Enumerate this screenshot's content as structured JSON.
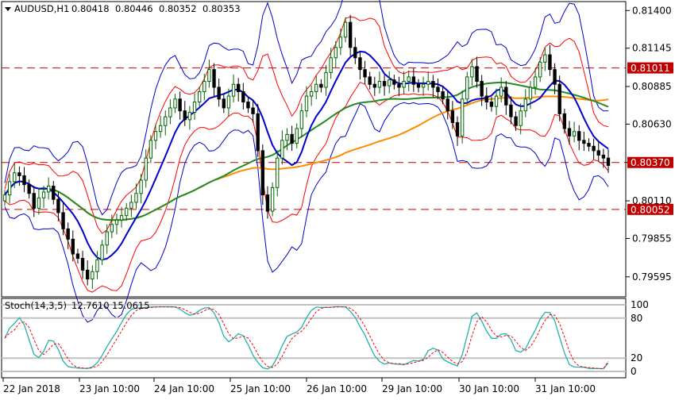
{
  "header": {
    "symbol": "AUDUSD,H1",
    "open": "0.80418",
    "high": "0.80446",
    "low": "0.80352",
    "close": "0.80353"
  },
  "stoch_header": {
    "name": "Stoch(14,3,5)",
    "main": "12.7610",
    "signal": "15.0615"
  },
  "colors": {
    "background": "#ffffff",
    "bull_candle": "#006400",
    "bear_candle": "#000000",
    "bb_outer": "#0000cd",
    "bb_inner": "#ff0000",
    "ma_fast": "#0000cd",
    "ma_mid": "#228b22",
    "ma_slow": "#ff8c00",
    "hline": "#cc0000",
    "price_tag_bg": "#c00000",
    "stoch_main": "#20b2aa",
    "stoch_signal": "#ff0000",
    "stoch_level": "#c0c0c0"
  },
  "chart_data": [
    {
      "type": "candlestick",
      "symbol": "AUDUSD",
      "timeframe": "H1",
      "ylim": [
        0.7947,
        0.8145
      ],
      "y_ticks": [
        "0.81400",
        "0.81145",
        "0.80885",
        "0.80630",
        "0.80370",
        "0.80110",
        "0.79855",
        "0.79595"
      ],
      "x_ticks": [
        "22 Jan 2018",
        "23 Jan 10:00",
        "24 Jan 10:00",
        "25 Jan 10:00",
        "26 Jan 10:00",
        "29 Jan 10:00",
        "30 Jan 10:00",
        "31 Jan 10:00"
      ],
      "horizontal_levels": [
        {
          "label": "0.81011",
          "value": 0.81011
        },
        {
          "label": "0.80370",
          "value": 0.8037
        },
        {
          "label": "0.80052",
          "value": 0.80052
        }
      ],
      "indicators": [
        "Bollinger Bands (outer, blue)",
        "Bollinger Bands (inner, red)",
        "Moving Average (blue)",
        "Moving Average (green)",
        "Moving Average (orange)"
      ],
      "closes": [
        0.8015,
        0.8024,
        0.803,
        0.8028,
        0.8022,
        0.8016,
        0.8006,
        0.8013,
        0.8017,
        0.8021,
        0.8012,
        0.8003,
        0.7992,
        0.7985,
        0.7975,
        0.7972,
        0.7964,
        0.7958,
        0.7963,
        0.7971,
        0.7981,
        0.799,
        0.7995,
        0.7998,
        0.8001,
        0.8006,
        0.801,
        0.8016,
        0.8025,
        0.804,
        0.8052,
        0.8058,
        0.8062,
        0.8068,
        0.8074,
        0.808,
        0.8072,
        0.8066,
        0.8071,
        0.8078,
        0.8085,
        0.8092,
        0.81,
        0.8088,
        0.808,
        0.8074,
        0.8082,
        0.809,
        0.8085,
        0.8078,
        0.8074,
        0.807,
        0.8045,
        0.8015,
        0.8004,
        0.802,
        0.804,
        0.8052,
        0.8056,
        0.805,
        0.806,
        0.8072,
        0.8082,
        0.8085,
        0.809,
        0.8088,
        0.8098,
        0.8108,
        0.8115,
        0.8122,
        0.8132,
        0.8115,
        0.8108,
        0.81,
        0.8095,
        0.809,
        0.8088,
        0.8092,
        0.8089,
        0.8093,
        0.809,
        0.8088,
        0.8092,
        0.8095,
        0.809,
        0.8088,
        0.809,
        0.8092,
        0.8088,
        0.8085,
        0.808,
        0.8072,
        0.8064,
        0.8055,
        0.808,
        0.8095,
        0.8102,
        0.8092,
        0.8082,
        0.8078,
        0.8075,
        0.8082,
        0.8088,
        0.8076,
        0.8068,
        0.8062,
        0.8072,
        0.808,
        0.8088,
        0.8095,
        0.8105,
        0.811,
        0.81,
        0.809,
        0.807,
        0.806,
        0.8055,
        0.8058,
        0.8052,
        0.805,
        0.8048,
        0.8045,
        0.8042,
        0.804,
        0.8035
      ],
      "stochastic": {
        "params": "14,3,5",
        "levels": [
          100,
          80,
          20,
          0
        ],
        "main_last": 12.761,
        "signal_last": 15.0615
      }
    }
  ]
}
